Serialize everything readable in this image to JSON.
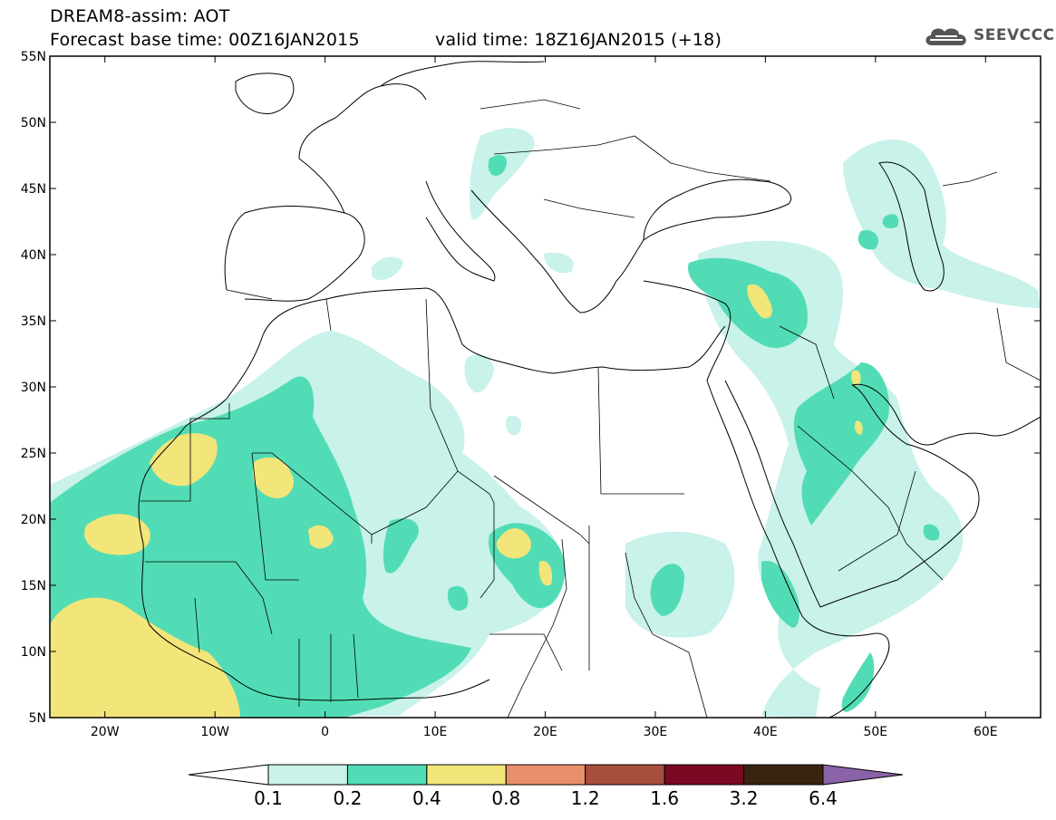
{
  "header": {
    "title_line1": "DREAM8-assim: AOT",
    "base_time": "Forecast base time: 00Z16JAN2015",
    "valid_time": "valid time: 18Z16JAN2015 (+18)"
  },
  "logo": {
    "text": "SEEVCCC",
    "icon": "cloud-logo-icon"
  },
  "axes": {
    "lat_labels": [
      "55N",
      "50N",
      "45N",
      "40N",
      "35N",
      "30N",
      "25N",
      "20N",
      "15N",
      "10N",
      "5N"
    ],
    "lon_labels": [
      "20W",
      "10W",
      "0",
      "10E",
      "20E",
      "30E",
      "40E",
      "50E",
      "60E"
    ],
    "lat_range": [
      5,
      55
    ],
    "lon_range": [
      -25,
      65
    ]
  },
  "colorbar": {
    "labels": [
      "0.1",
      "0.2",
      "0.4",
      "0.8",
      "1.2",
      "1.6",
      "3.2",
      "6.4"
    ],
    "colors": [
      "#ffffff",
      "#c8f2ea",
      "#52dcb5",
      "#f2e57a",
      "#e8906a",
      "#a84e3c",
      "#7a0a24",
      "#3a2410",
      "#8a62a8"
    ],
    "extend": "both"
  },
  "colors": {
    "land_border": "#000000",
    "frame": "#000000"
  }
}
